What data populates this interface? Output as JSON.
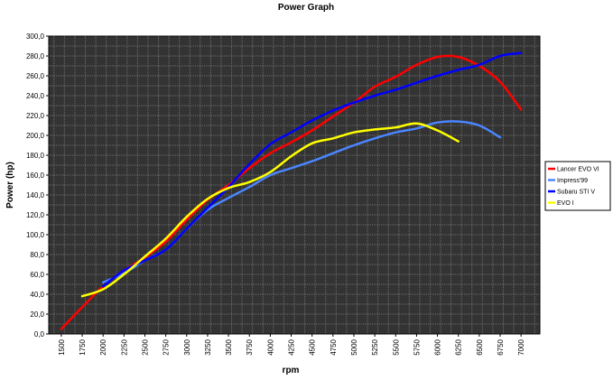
{
  "chart_data": {
    "type": "line",
    "title": "Power Graph",
    "xlabel": "rpm",
    "ylabel": "Power (hp)",
    "xlim": [
      1500,
      7000
    ],
    "ylim": [
      0,
      300
    ],
    "x_ticks": [
      "1500",
      "1750",
      "2000",
      "2250",
      "2500",
      "2750",
      "3000",
      "3250",
      "3500",
      "3750",
      "4000",
      "4250",
      "4500",
      "4750",
      "5000",
      "5250",
      "5500",
      "5750",
      "6000",
      "6250",
      "6500",
      "6750",
      "7000"
    ],
    "y_ticks": [
      "0,0",
      "20,0",
      "40,0",
      "60,0",
      "80,0",
      "100,0",
      "120,0",
      "140,0",
      "160,0",
      "180,0",
      "200,0",
      "220,0",
      "240,0",
      "260,0",
      "280,0",
      "300,0"
    ],
    "grid": true,
    "legend_position": "right",
    "background": "#333333",
    "gridline_color": "#6f6f6f",
    "series": [
      {
        "name": "Lancer EVO VI",
        "color": "#ff0000",
        "x": [
          1500,
          1750,
          2000,
          2250,
          2500,
          2750,
          3000,
          3250,
          3500,
          3750,
          4000,
          4250,
          4500,
          4750,
          5000,
          5250,
          5500,
          5750,
          6000,
          6250,
          6500,
          6750,
          7000
        ],
        "y": [
          5,
          27,
          48,
          64,
          77,
          93,
          115,
          135,
          150,
          167,
          182,
          193,
          205,
          219,
          233,
          249,
          259,
          271,
          279,
          279,
          270,
          254,
          226
        ]
      },
      {
        "name": "Impress'99",
        "color": "#4a86ff",
        "x": [
          2000,
          2250,
          2500,
          2750,
          3000,
          3250,
          3500,
          3750,
          4000,
          4250,
          4500,
          4750,
          5000,
          5250,
          5500,
          5750,
          6000,
          6250,
          6500,
          6750
        ],
        "y": [
          52,
          61,
          74,
          85,
          106,
          125,
          137,
          148,
          160,
          167,
          174,
          182,
          190,
          197,
          203,
          207,
          213,
          214,
          210,
          198
        ]
      },
      {
        "name": "Subaru STI V",
        "color": "#0000ff",
        "x": [
          2000,
          2250,
          2500,
          2750,
          3000,
          3250,
          3500,
          3750,
          4000,
          4250,
          4500,
          4750,
          5000,
          5250,
          5500,
          5750,
          6000,
          6250,
          6500,
          6750,
          7000
        ],
        "y": [
          48,
          64,
          74,
          85,
          106,
          127,
          148,
          171,
          191,
          203,
          215,
          225,
          233,
          240,
          246,
          253,
          260,
          266,
          271,
          280,
          283
        ]
      },
      {
        "name": "EVO I",
        "color": "#ffff00",
        "x": [
          1750,
          2000,
          2250,
          2500,
          2750,
          3000,
          3250,
          3500,
          3750,
          4000,
          4250,
          4500,
          4750,
          5000,
          5250,
          5500,
          5750,
          6000,
          6250
        ],
        "y": [
          38,
          45,
          60,
          78,
          96,
          118,
          136,
          147,
          153,
          163,
          179,
          192,
          197,
          203,
          206,
          208,
          212,
          205,
          194
        ]
      }
    ]
  }
}
